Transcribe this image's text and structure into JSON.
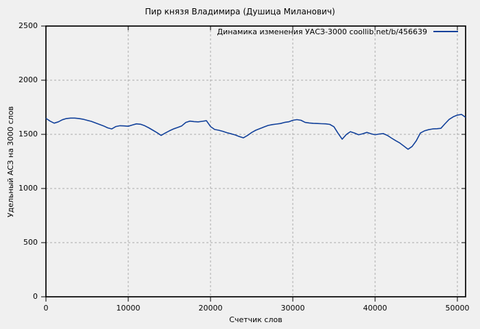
{
  "colors": {
    "background": "#f0f0f0",
    "plot_frame": "#000000",
    "grid": "#aaaaaa",
    "text": "#000000",
    "series_line": "#11409a"
  },
  "chart_data": {
    "type": "line",
    "title": "Пир князя Владимира (Душица Миланович)",
    "xlabel": "Счетчик слов",
    "ylabel": "Удельный АСЗ на 3000 слов",
    "xlim": [
      0,
      51000
    ],
    "ylim": [
      0,
      2500
    ],
    "xticks": [
      0,
      10000,
      20000,
      30000,
      40000,
      50000
    ],
    "yticks": [
      0,
      500,
      1000,
      1500,
      2000,
      2500
    ],
    "grid": true,
    "legend_position": "top-right-inside",
    "series": [
      {
        "name": "Динамика изменения УАСЗ-3000  coollib.net/b/456639",
        "x": [
          0,
          500,
          1000,
          1500,
          2000,
          2500,
          3000,
          3500,
          4000,
          4500,
          5000,
          5500,
          6000,
          6500,
          7000,
          7500,
          8000,
          8500,
          9000,
          9500,
          10000,
          10500,
          11000,
          11500,
          12000,
          12500,
          13000,
          13500,
          14000,
          14500,
          15000,
          15500,
          16000,
          16500,
          17000,
          17500,
          18000,
          18500,
          19000,
          19500,
          20000,
          20500,
          21000,
          21500,
          22000,
          22500,
          23000,
          23500,
          24000,
          24500,
          25000,
          25500,
          26000,
          26500,
          27000,
          27500,
          28000,
          28500,
          29000,
          29500,
          30000,
          30500,
          31000,
          31500,
          32000,
          32500,
          33000,
          33500,
          34000,
          34500,
          35000,
          35500,
          36000,
          36500,
          37000,
          37500,
          38000,
          38500,
          39000,
          39500,
          40000,
          40500,
          41000,
          41500,
          42000,
          42500,
          43000,
          43500,
          44000,
          44500,
          45000,
          45500,
          46000,
          46500,
          47000,
          47500,
          48000,
          48500,
          49000,
          49500,
          50000,
          50500,
          51000
        ],
        "y": [
          1648,
          1622,
          1603,
          1615,
          1635,
          1646,
          1650,
          1650,
          1646,
          1640,
          1630,
          1620,
          1606,
          1592,
          1578,
          1560,
          1550,
          1572,
          1580,
          1578,
          1575,
          1586,
          1597,
          1593,
          1580,
          1560,
          1538,
          1515,
          1490,
          1512,
          1532,
          1550,
          1563,
          1578,
          1610,
          1622,
          1618,
          1615,
          1620,
          1626,
          1572,
          1545,
          1538,
          1528,
          1515,
          1505,
          1494,
          1480,
          1468,
          1490,
          1517,
          1538,
          1553,
          1568,
          1582,
          1590,
          1595,
          1600,
          1610,
          1616,
          1630,
          1636,
          1630,
          1610,
          1605,
          1602,
          1600,
          1598,
          1597,
          1592,
          1570,
          1510,
          1455,
          1498,
          1525,
          1512,
          1496,
          1506,
          1518,
          1506,
          1496,
          1503,
          1507,
          1490,
          1465,
          1442,
          1420,
          1392,
          1362,
          1388,
          1440,
          1512,
          1532,
          1543,
          1550,
          1552,
          1556,
          1598,
          1638,
          1662,
          1678,
          1684,
          1657
        ]
      }
    ]
  }
}
